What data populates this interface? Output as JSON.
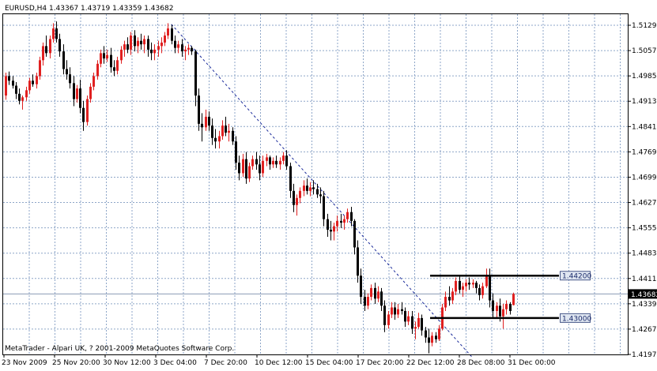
{
  "header": {
    "symbol_line": "EURUSD,H4  1.43367 1.43719 1.43359 1.43682"
  },
  "footer": {
    "copyright": "MetaTrader - Alpari UK, ? 2001-2009 MetaQuotes Software Corp."
  },
  "colors": {
    "background": "#ffffff",
    "grid": "#8ea6c8",
    "bull_candle": "#e02020",
    "bear_candle": "#000000",
    "trendline": "#1a2a9a",
    "horizontal_line": "#000000",
    "current_price_line": "#8c9bb5",
    "label_fill": "#dfe6f1",
    "current_label_fill": "#000000"
  },
  "chart_data": {
    "type": "candlestick",
    "symbol": "EURUSD",
    "timeframe": "H4",
    "last_bar": {
      "open": 1.43367,
      "high": 1.43719,
      "low": 1.43359,
      "close": 1.43682
    },
    "y_ticks": [
      "1.51290",
      "1.50570",
      "1.49850",
      "1.49130",
      "1.48410",
      "1.47690",
      "1.46990",
      "1.46270",
      "1.45550",
      "1.44830",
      "1.44110",
      "1.43390",
      "1.42670",
      "1.41970"
    ],
    "ylim": [
      1.4197,
      1.5129
    ],
    "x_ticks": [
      "23 Nov 2009",
      "25 Nov 20:00",
      "30 Nov 12:00",
      "3 Dec 04:00",
      "7 Dec 20:00",
      "10 Dec 12:00",
      "15 Dec 04:00",
      "17 Dec 20:00",
      "22 Dec 12:00",
      "28 Dec 08:00",
      "31 Dec 00:00"
    ],
    "current_price": "1.43682",
    "horizontal_levels": [
      {
        "price": 1.442,
        "label": "1.44200"
      },
      {
        "price": 1.43,
        "label": "1.43000"
      }
    ],
    "trendline": {
      "from": {
        "bar": 49,
        "price": 1.5132
      },
      "to": {
        "bar": 138,
        "price": 1.4188
      },
      "style": "dashed"
    },
    "ohlc": [
      [
        1.493,
        1.4995,
        1.4918,
        1.4985
      ],
      [
        1.4985,
        1.4998,
        1.496,
        1.4972
      ],
      [
        1.4972,
        1.4985,
        1.495,
        1.4958
      ],
      [
        1.4958,
        1.4968,
        1.492,
        1.4935
      ],
      [
        1.4935,
        1.495,
        1.4905,
        1.4915
      ],
      [
        1.4915,
        1.493,
        1.489,
        1.4925
      ],
      [
        1.4925,
        1.4955,
        1.4915,
        1.4945
      ],
      [
        1.4945,
        1.498,
        1.4935,
        1.4972
      ],
      [
        1.4972,
        1.499,
        1.4955,
        1.4962
      ],
      [
        1.4962,
        1.4995,
        1.495,
        1.4985
      ],
      [
        1.4985,
        1.504,
        1.4975,
        1.503
      ],
      [
        1.503,
        1.508,
        1.5015,
        1.507
      ],
      [
        1.507,
        1.51,
        1.504,
        1.505
      ],
      [
        1.505,
        1.51,
        1.5035,
        1.509
      ],
      [
        1.509,
        1.5135,
        1.508,
        1.512
      ],
      [
        1.512,
        1.514,
        1.508,
        1.509
      ],
      [
        1.509,
        1.5105,
        1.504,
        1.5055
      ],
      [
        1.5055,
        1.5075,
        1.499,
        1.5005
      ],
      [
        1.5005,
        1.503,
        1.4975,
        1.499
      ],
      [
        1.499,
        1.501,
        1.495,
        1.4965
      ],
      [
        1.4965,
        1.4985,
        1.49,
        1.492
      ],
      [
        1.492,
        1.496,
        1.491,
        1.495
      ],
      [
        1.495,
        1.4975,
        1.488,
        1.4895
      ],
      [
        1.4895,
        1.4915,
        1.483,
        1.4855
      ],
      [
        1.4855,
        1.493,
        1.4845,
        1.492
      ],
      [
        1.492,
        1.4965,
        1.491,
        1.4955
      ],
      [
        1.4955,
        1.4995,
        1.4945,
        1.4985
      ],
      [
        1.4985,
        1.503,
        1.4975,
        1.502
      ],
      [
        1.502,
        1.506,
        1.501,
        1.505
      ],
      [
        1.505,
        1.507,
        1.502,
        1.5035
      ],
      [
        1.5035,
        1.506,
        1.5025,
        1.5045
      ],
      [
        1.5045,
        1.5065,
        1.4995,
        1.501
      ],
      [
        1.501,
        1.503,
        1.4985,
        1.5
      ],
      [
        1.5,
        1.504,
        1.499,
        1.503
      ],
      [
        1.503,
        1.507,
        1.502,
        1.506
      ],
      [
        1.506,
        1.5085,
        1.504,
        1.5075
      ],
      [
        1.5075,
        1.5095,
        1.505,
        1.506
      ],
      [
        1.506,
        1.511,
        1.5045,
        1.51
      ],
      [
        1.51,
        1.5115,
        1.5055,
        1.507
      ],
      [
        1.507,
        1.5095,
        1.505,
        1.5085
      ],
      [
        1.5085,
        1.5105,
        1.506,
        1.5075
      ],
      [
        1.5075,
        1.51,
        1.505,
        1.509
      ],
      [
        1.509,
        1.51,
        1.504,
        1.506
      ],
      [
        1.506,
        1.508,
        1.503,
        1.505
      ],
      [
        1.505,
        1.5075,
        1.503,
        1.506
      ],
      [
        1.506,
        1.5085,
        1.504,
        1.507
      ],
      [
        1.507,
        1.5095,
        1.505,
        1.508
      ],
      [
        1.508,
        1.511,
        1.507,
        1.51
      ],
      [
        1.51,
        1.5135,
        1.509,
        1.512
      ],
      [
        1.512,
        1.513,
        1.5075,
        1.5085
      ],
      [
        1.5085,
        1.51,
        1.505,
        1.5065
      ],
      [
        1.5065,
        1.5085,
        1.505,
        1.5075
      ],
      [
        1.5075,
        1.509,
        1.504,
        1.5055
      ],
      [
        1.5055,
        1.507,
        1.503,
        1.506
      ],
      [
        1.506,
        1.5075,
        1.5045,
        1.5065
      ],
      [
        1.5065,
        1.507,
        1.5045,
        1.5055
      ],
      [
        1.5055,
        1.506,
        1.49,
        1.493
      ],
      [
        1.493,
        1.495,
        1.483,
        1.485
      ],
      [
        1.485,
        1.488,
        1.48,
        1.484
      ],
      [
        1.484,
        1.489,
        1.483,
        1.487
      ],
      [
        1.487,
        1.4885,
        1.483,
        1.4845
      ],
      [
        1.4845,
        1.4865,
        1.479,
        1.481
      ],
      [
        1.481,
        1.4835,
        1.478,
        1.48
      ],
      [
        1.48,
        1.483,
        1.478,
        1.4815
      ],
      [
        1.4815,
        1.486,
        1.4805,
        1.4845
      ],
      [
        1.4845,
        1.487,
        1.4815,
        1.4825
      ],
      [
        1.4825,
        1.485,
        1.48,
        1.483
      ],
      [
        1.483,
        1.484,
        1.479,
        1.48
      ],
      [
        1.48,
        1.4815,
        1.472,
        1.474
      ],
      [
        1.474,
        1.476,
        1.469,
        1.471
      ],
      [
        1.471,
        1.4765,
        1.47,
        1.475
      ],
      [
        1.475,
        1.477,
        1.468,
        1.4695
      ],
      [
        1.4695,
        1.474,
        1.4685,
        1.473
      ],
      [
        1.473,
        1.476,
        1.472,
        1.475
      ],
      [
        1.475,
        1.477,
        1.472,
        1.4735
      ],
      [
        1.4735,
        1.476,
        1.469,
        1.471
      ],
      [
        1.471,
        1.476,
        1.47,
        1.4745
      ],
      [
        1.4745,
        1.4765,
        1.473,
        1.4755
      ],
      [
        1.4755,
        1.476,
        1.472,
        1.4735
      ],
      [
        1.4735,
        1.4755,
        1.4725,
        1.4745
      ],
      [
        1.4745,
        1.476,
        1.4725,
        1.4735
      ],
      [
        1.4735,
        1.4755,
        1.472,
        1.4745
      ],
      [
        1.4745,
        1.477,
        1.4735,
        1.476
      ],
      [
        1.476,
        1.4775,
        1.472,
        1.473
      ],
      [
        1.473,
        1.474,
        1.464,
        1.466
      ],
      [
        1.466,
        1.468,
        1.46,
        1.462
      ],
      [
        1.462,
        1.465,
        1.459,
        1.464
      ],
      [
        1.464,
        1.467,
        1.4625,
        1.466
      ],
      [
        1.466,
        1.469,
        1.4645,
        1.4675
      ],
      [
        1.4675,
        1.4695,
        1.465,
        1.466
      ],
      [
        1.466,
        1.4685,
        1.4645,
        1.467
      ],
      [
        1.467,
        1.469,
        1.465,
        1.4665
      ],
      [
        1.4665,
        1.468,
        1.464,
        1.465
      ],
      [
        1.465,
        1.467,
        1.4625,
        1.4645
      ],
      [
        1.4645,
        1.466,
        1.456,
        1.458
      ],
      [
        1.458,
        1.4595,
        1.453,
        1.455
      ],
      [
        1.455,
        1.4575,
        1.452,
        1.4545
      ],
      [
        1.4545,
        1.457,
        1.452,
        1.456
      ],
      [
        1.456,
        1.459,
        1.4545,
        1.4575
      ],
      [
        1.4575,
        1.4595,
        1.4555,
        1.457
      ],
      [
        1.457,
        1.459,
        1.455,
        1.458
      ],
      [
        1.458,
        1.461,
        1.457,
        1.46
      ],
      [
        1.46,
        1.4615,
        1.456,
        1.4575
      ],
      [
        1.4575,
        1.458,
        1.448,
        1.45
      ],
      [
        1.45,
        1.452,
        1.44,
        1.442
      ],
      [
        1.442,
        1.444,
        1.434,
        1.436
      ],
      [
        1.436,
        1.438,
        1.432,
        1.4335
      ],
      [
        1.4335,
        1.437,
        1.4325,
        1.436
      ],
      [
        1.436,
        1.4395,
        1.435,
        1.4385
      ],
      [
        1.4385,
        1.44,
        1.434,
        1.4355
      ],
      [
        1.4355,
        1.439,
        1.4345,
        1.4375
      ],
      [
        1.4375,
        1.4385,
        1.432,
        1.4335
      ],
      [
        1.4335,
        1.435,
        1.426,
        1.428
      ],
      [
        1.428,
        1.432,
        1.427,
        1.431
      ],
      [
        1.431,
        1.4345,
        1.43,
        1.433
      ],
      [
        1.433,
        1.4345,
        1.4295,
        1.431
      ],
      [
        1.431,
        1.434,
        1.43,
        1.4325
      ],
      [
        1.4325,
        1.4345,
        1.431,
        1.432
      ],
      [
        1.432,
        1.433,
        1.4275,
        1.429
      ],
      [
        1.429,
        1.432,
        1.428,
        1.4305
      ],
      [
        1.4305,
        1.432,
        1.4255,
        1.427
      ],
      [
        1.427,
        1.429,
        1.424,
        1.4275
      ],
      [
        1.4275,
        1.4315,
        1.427,
        1.43
      ],
      [
        1.43,
        1.431,
        1.425,
        1.4265
      ],
      [
        1.4265,
        1.4275,
        1.423,
        1.4245
      ],
      [
        1.4245,
        1.427,
        1.42,
        1.423
      ],
      [
        1.423,
        1.426,
        1.422,
        1.425
      ],
      [
        1.425,
        1.426,
        1.423,
        1.424
      ],
      [
        1.424,
        1.428,
        1.4235,
        1.427
      ],
      [
        1.427,
        1.434,
        1.4265,
        1.433
      ],
      [
        1.433,
        1.4375,
        1.432,
        1.436
      ],
      [
        1.436,
        1.439,
        1.4335,
        1.435
      ],
      [
        1.435,
        1.4385,
        1.434,
        1.4375
      ],
      [
        1.4375,
        1.4415,
        1.4365,
        1.4405
      ],
      [
        1.4405,
        1.442,
        1.437,
        1.438
      ],
      [
        1.438,
        1.44,
        1.436,
        1.439
      ],
      [
        1.439,
        1.441,
        1.4375,
        1.44
      ],
      [
        1.44,
        1.4415,
        1.438,
        1.4395
      ],
      [
        1.4395,
        1.441,
        1.4385,
        1.44
      ],
      [
        1.44,
        1.4405,
        1.437,
        1.4385
      ],
      [
        1.4385,
        1.4395,
        1.435,
        1.4365
      ],
      [
        1.4365,
        1.44,
        1.4355,
        1.439
      ],
      [
        1.439,
        1.444,
        1.4385,
        1.442
      ],
      [
        1.442,
        1.444,
        1.433,
        1.435
      ],
      [
        1.435,
        1.437,
        1.43,
        1.432
      ],
      [
        1.432,
        1.4345,
        1.43,
        1.4335
      ],
      [
        1.4335,
        1.4355,
        1.429,
        1.4305
      ],
      [
        1.4305,
        1.434,
        1.427,
        1.4325
      ],
      [
        1.4325,
        1.435,
        1.431,
        1.434
      ],
      [
        1.434,
        1.4345,
        1.431,
        1.432
      ],
      [
        1.43367,
        1.43719,
        1.43359,
        1.43682
      ]
    ]
  }
}
